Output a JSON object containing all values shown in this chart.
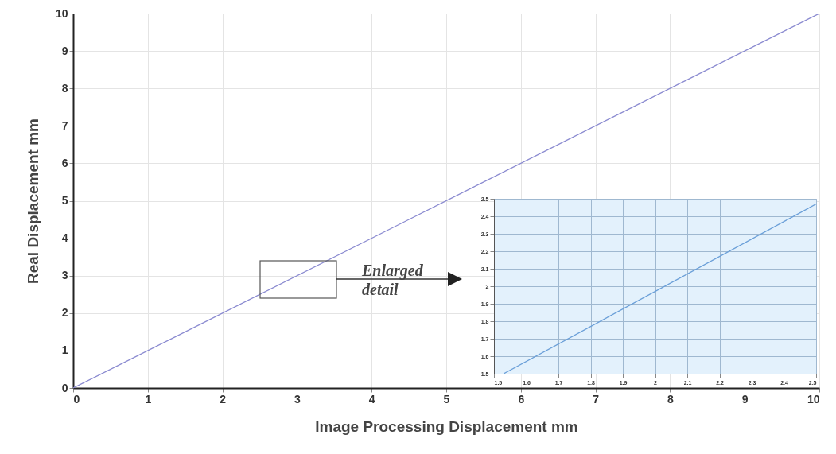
{
  "chart_data": [
    {
      "type": "line",
      "xlabel": "Image Processing Displacement mm",
      "ylabel": "Real Displacement mm",
      "x": [
        0,
        10
      ],
      "values": [
        0,
        10
      ],
      "color": "#8a8ad0",
      "xlim": [
        0,
        10
      ],
      "ylim": [
        0,
        10
      ],
      "xticks": [
        0,
        1,
        2,
        3,
        4,
        5,
        6,
        7,
        8,
        9,
        10
      ],
      "yticks": [
        0,
        1,
        2,
        3,
        4,
        5,
        6,
        7,
        8,
        9,
        10
      ],
      "grid": true,
      "annotations": [
        "Enlarged detail"
      ]
    },
    {
      "type": "line",
      "x": [
        1.53,
        2.5
      ],
      "values": [
        1.5,
        2.47
      ],
      "color": "#6a9fd8",
      "xlim": [
        1.5,
        2.5
      ],
      "ylim": [
        1.5,
        2.5
      ],
      "xticks": [
        1.5,
        1.6,
        1.7,
        1.8,
        1.9,
        2,
        2.1,
        2.2,
        2.3,
        2.4,
        2.5
      ],
      "yticks": [
        1.5,
        1.6,
        1.7,
        1.8,
        1.9,
        2,
        2.1,
        2.2,
        2.3,
        2.4,
        2.5
      ],
      "grid": true
    }
  ]
}
